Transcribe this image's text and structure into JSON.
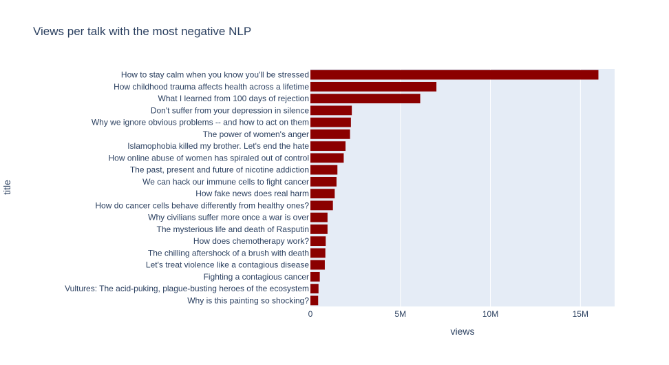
{
  "chart_data": {
    "type": "bar",
    "orientation": "horizontal",
    "title": "Views per talk with the most negative NLP",
    "xlabel": "views",
    "ylabel": "title",
    "xlim": [
      0,
      16900000
    ],
    "x_ticks": [
      0,
      5000000,
      10000000,
      15000000
    ],
    "x_tick_labels": [
      "0",
      "5M",
      "10M",
      "15M"
    ],
    "grid": true,
    "bar_color": "#8b0000",
    "plot_bg": "#e5ecf6",
    "categories": [
      "How to stay calm when you know you'll be stressed",
      "How childhood trauma affects health across a lifetime",
      "What I learned from 100 days of rejection",
      "Don't suffer from your depression in silence",
      "Why we ignore obvious problems -- and how to act on them",
      "The power of women's anger",
      "Islamophobia killed my brother. Let's end the hate",
      "How online abuse of women has spiraled out of control",
      "The past, present and future of nicotine addiction",
      "We can hack our immune cells to fight cancer",
      "How fake news does real harm",
      "How do cancer cells behave differently from healthy ones?",
      "Why civilians suffer more once a war is over",
      "The mysterious life and death of Rasputin",
      "How does chemotherapy work?",
      "The chilling aftershock of a brush with death",
      "Let's treat violence like a contagious disease",
      "Fighting a contagious cancer",
      "Vultures: The acid-puking, plague-busting heroes of the ecosystem",
      "Why is this painting so shocking?"
    ],
    "values": [
      16000000,
      7000000,
      6100000,
      2300000,
      2250000,
      2200000,
      1950000,
      1850000,
      1500000,
      1450000,
      1350000,
      1250000,
      950000,
      950000,
      850000,
      830000,
      800000,
      520000,
      450000,
      430000
    ]
  }
}
